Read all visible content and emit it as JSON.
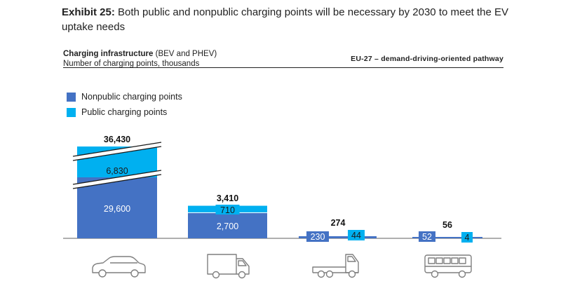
{
  "header": {
    "exhibit_label": "Exhibit 25:",
    "exhibit_text": " Both public and nonpublic charging points will be necessary by 2030 to meet the EV uptake needs"
  },
  "subtitle": {
    "title_bold": "Charging infrastructure",
    "title_rest": " (BEV and PHEV)",
    "units": "Number of charging points, thousands",
    "pathway": "EU-27 – demand-driving-oriented pathway"
  },
  "colors": {
    "nonpublic": "#4472C4",
    "public": "#00B0F0",
    "axis": "#7F7F7F"
  },
  "chart_data": {
    "type": "bar",
    "stacked": true,
    "title": "Charging infrastructure (BEV and PHEV)",
    "ylabel": "Number of charging points, thousands",
    "categories": [
      "car-icon",
      "van-icon",
      "truck-icon",
      "bus-icon"
    ],
    "series": [
      {
        "name": "Nonpublic charging points",
        "values": [
          29600,
          2700,
          230,
          52
        ]
      },
      {
        "name": "Public charging points",
        "values": [
          6830,
          710,
          44,
          4
        ]
      }
    ],
    "totals": [
      36430,
      3410,
      274,
      56
    ],
    "labels": {
      "nonpublic": [
        "29,600",
        "2,700",
        "230",
        "52"
      ],
      "public": [
        "6,830",
        "710",
        "44",
        "4"
      ],
      "totals": [
        "36,430",
        "3,410",
        "274",
        "56"
      ]
    },
    "axis_break": "first bar truncated (broken scale)"
  },
  "legend": {
    "nonpublic": "Nonpublic charging points",
    "public": "Public charging points"
  }
}
